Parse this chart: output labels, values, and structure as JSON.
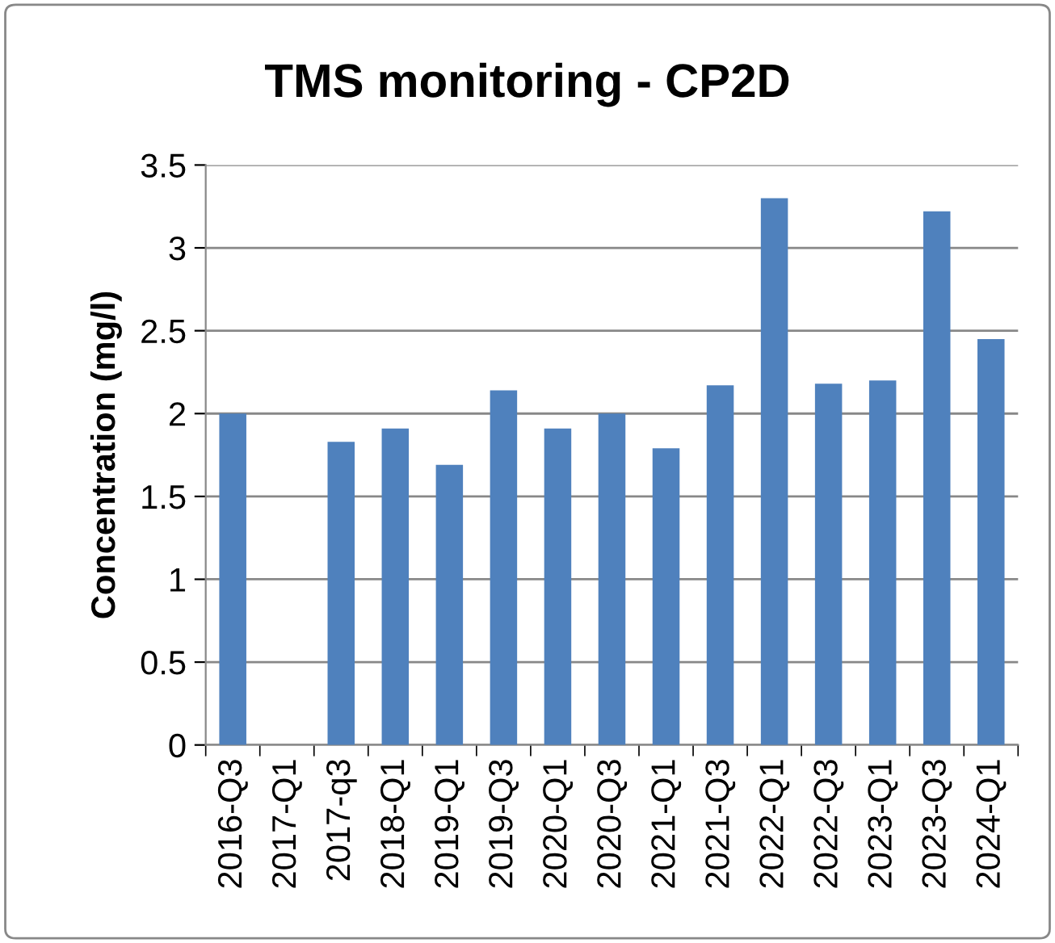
{
  "chart_data": {
    "type": "bar",
    "title": "TMS monitoring - CP2D",
    "ylabel": "Concentration (mg/l)",
    "categories": [
      "2016-Q3",
      "2017-Q1",
      "2017-q3",
      "2018-Q1",
      "2019-Q1",
      "2019-Q3",
      "2020-Q1",
      "2020-Q3",
      "2021-Q1",
      "2021-Q3",
      "2022-Q1",
      "2022-Q3",
      "2023-Q1",
      "2023-Q3",
      "2024-Q1"
    ],
    "values": [
      2.0,
      null,
      1.83,
      1.91,
      1.69,
      2.14,
      1.91,
      2.0,
      1.79,
      2.17,
      3.3,
      2.18,
      2.2,
      3.22,
      2.45
    ],
    "color": "#4f81bd",
    "ylim": [
      0,
      3.5
    ],
    "yticks": [
      0,
      0.5,
      1,
      1.5,
      2,
      2.5,
      3,
      3.5
    ],
    "grid": "y"
  }
}
